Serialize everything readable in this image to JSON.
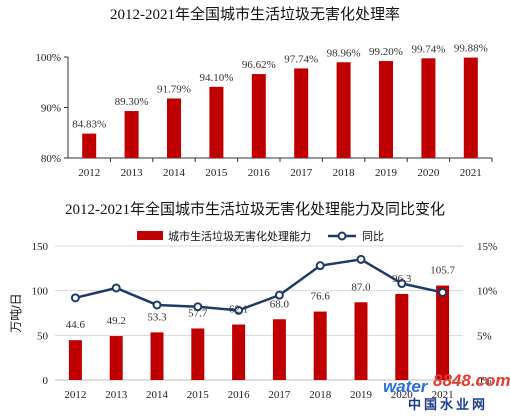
{
  "chart_data": [
    {
      "type": "bar",
      "title": "2012-2021年全国城市生活垃圾无害化处理率",
      "categories": [
        "2012",
        "2013",
        "2014",
        "2015",
        "2016",
        "2017",
        "2018",
        "2019",
        "2020",
        "2021"
      ],
      "values": [
        84.83,
        89.3,
        91.79,
        94.1,
        96.62,
        97.74,
        98.96,
        99.2,
        99.74,
        99.88
      ],
      "value_labels": [
        "84.83%",
        "89.30%",
        "91.79%",
        "94.10%",
        "96.62%",
        "97.74%",
        "98.96%",
        "99.20%",
        "99.74%",
        "99.88%"
      ],
      "ylim": [
        80,
        100
      ],
      "yticks": [
        "80%",
        "90%",
        "100%"
      ],
      "bar_color": "#c00000",
      "grid": false
    },
    {
      "type": "bar+line",
      "title": "2012-2021年全国城市生活垃圾无害化处理能力及同比变化",
      "categories": [
        "2012",
        "2013",
        "2014",
        "2015",
        "2016",
        "2017",
        "2018",
        "2019",
        "2020",
        "2021"
      ],
      "ylabel": "万吨/日",
      "ylim": [
        0,
        150
      ],
      "yticks": [
        "0",
        "50",
        "100",
        "150"
      ],
      "y2lim": [
        0,
        15
      ],
      "y2ticks": [
        "0%",
        "5%",
        "10%",
        "15%"
      ],
      "legend_position": "top",
      "grid": true,
      "series": [
        {
          "name": "城市生活垃圾无害化处理能力",
          "kind": "bar",
          "axis": "left",
          "color": "#c00000",
          "values": [
            44.6,
            49.2,
            53.3,
            57.7,
            62.1,
            68.0,
            76.6,
            87.0,
            96.3,
            105.7
          ],
          "value_labels": [
            "44.6",
            "49.2",
            "53.3",
            "57.7",
            "62.1",
            "68.0",
            "76.6",
            "87.0",
            "96.3",
            "105.7"
          ]
        },
        {
          "name": "同比",
          "kind": "line",
          "axis": "right",
          "color": "#1f3a68",
          "values": [
            9.2,
            10.3,
            8.4,
            8.2,
            7.8,
            9.5,
            12.8,
            13.5,
            10.8,
            9.8
          ]
        }
      ]
    }
  ],
  "watermark": {
    "text_left": "water",
    "text_right": "8848.com",
    "text_bottom": "中国水业网"
  }
}
